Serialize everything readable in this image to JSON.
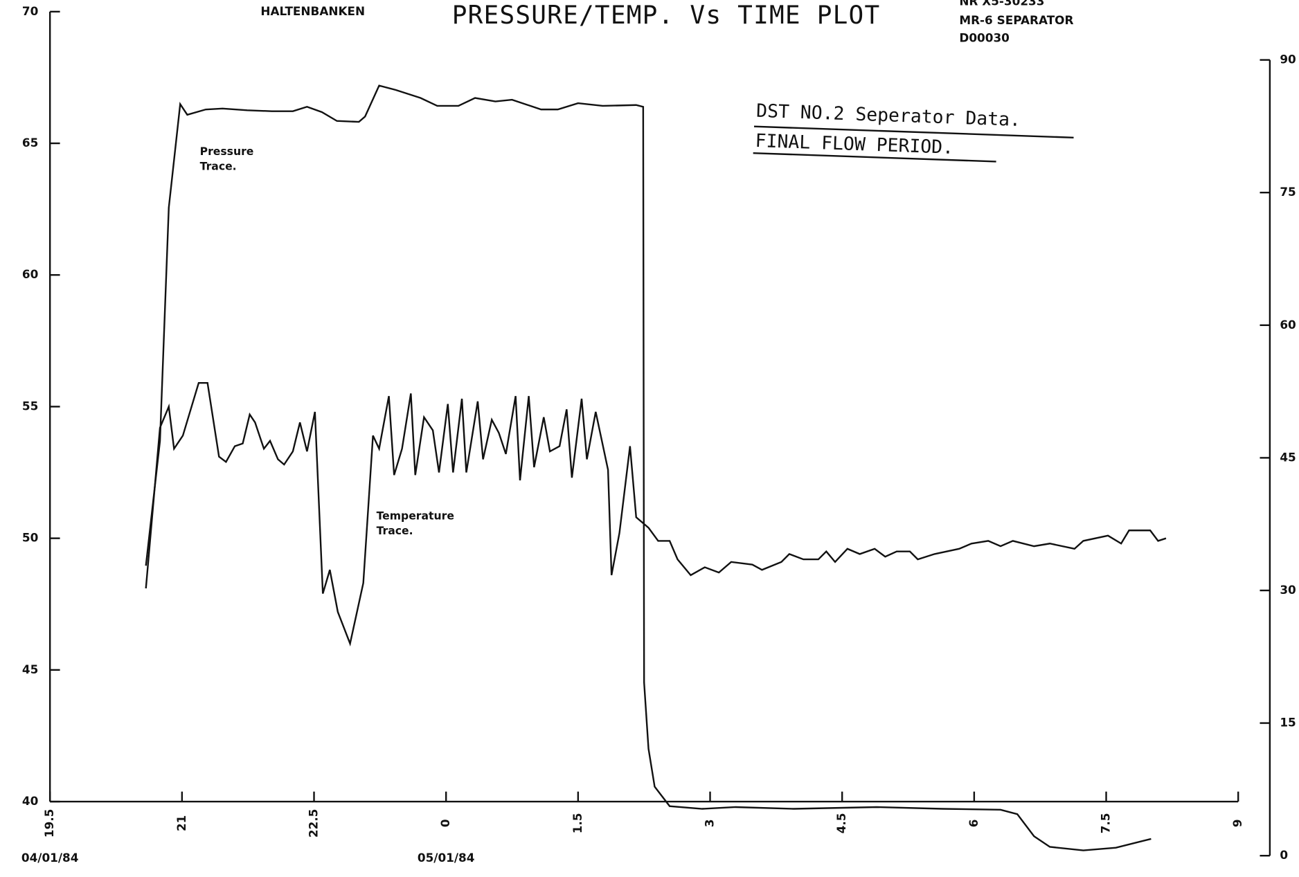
{
  "header": {
    "location": "HALTENBANKEN",
    "well_lines": [
      "NR X5-30233",
      "MR-6 SEPARATOR",
      "D00030"
    ]
  },
  "chart_data": {
    "type": "line",
    "title": "PRESSURE/TEMP. Vs TIME PLOT",
    "annotations": [
      "DST NO.2  Seperator Data.",
      "FINAL FLOW PERIOD."
    ],
    "color": "#111111",
    "grid": false,
    "xlim": [
      19.5,
      33
    ],
    "xticks": [
      19.5,
      21,
      22.5,
      {
        "value": 24,
        "label": "0"
      },
      {
        "value": 25.5,
        "label": "1.5"
      },
      {
        "value": 27,
        "label": "3"
      },
      {
        "value": 28.5,
        "label": "4.5"
      },
      {
        "value": 30,
        "label": "6"
      },
      {
        "value": 31.5,
        "label": "7.5"
      },
      {
        "value": 33,
        "label": "9"
      }
    ],
    "date_labels": [
      {
        "x": 19.5,
        "label": "04/01/84"
      },
      {
        "x": 24,
        "label": "05/01/84"
      }
    ],
    "ylim": [
      40,
      70
    ],
    "yticks": [
      40,
      45,
      50,
      55,
      60,
      65,
      70
    ],
    "y2lim": [
      0,
      90
    ],
    "y2ticks": [
      0,
      15,
      30,
      45,
      60,
      75,
      90
    ],
    "series": [
      {
        "name": "Pressure Trace.",
        "axis": "y2",
        "x": [
          20.59,
          20.75,
          20.85,
          20.98,
          21.06,
          21.27,
          21.46,
          21.74,
          22.02,
          22.26,
          22.42,
          22.59,
          22.76,
          23.01,
          23.08,
          23.24,
          23.43,
          23.71,
          23.9,
          24.14,
          24.33,
          24.56,
          24.75,
          25.08,
          25.27,
          25.5,
          25.78,
          26.16,
          26.24,
          26.25,
          26.3,
          26.37,
          26.54,
          26.91,
          27.29,
          27.95,
          28.89,
          29.64,
          30.3,
          30.49,
          30.68,
          30.86,
          31.24,
          31.61,
          32.01
        ],
        "values": [
          32.8,
          46.9,
          73.3,
          85.0,
          83.8,
          84.4,
          84.5,
          84.3,
          84.2,
          84.2,
          84.7,
          84.1,
          83.1,
          83.0,
          83.6,
          87.1,
          86.6,
          85.7,
          84.8,
          84.8,
          85.7,
          85.3,
          85.5,
          84.4,
          84.4,
          85.1,
          84.8,
          84.9,
          84.7,
          19.6,
          12.1,
          7.8,
          5.6,
          5.3,
          5.5,
          5.3,
          5.5,
          5.3,
          5.2,
          4.7,
          2.2,
          1.0,
          0.6,
          0.9,
          1.9
        ]
      },
      {
        "name": "Temperature Trace.",
        "x": [
          20.59,
          20.75,
          20.85,
          20.91,
          21.01,
          21.19,
          21.29,
          21.42,
          21.5,
          21.6,
          21.69,
          21.77,
          21.83,
          21.93,
          22.0,
          22.09,
          22.16,
          22.26,
          22.34,
          22.42,
          22.51,
          22.6,
          22.68,
          22.77,
          22.91,
          23.06,
          23.17,
          23.24,
          23.35,
          23.41,
          23.5,
          23.6,
          23.65,
          23.75,
          23.85,
          23.92,
          24.02,
          24.08,
          24.18,
          24.23,
          24.36,
          24.42,
          24.52,
          24.6,
          24.68,
          24.79,
          24.84,
          24.94,
          25.0,
          25.11,
          25.18,
          25.29,
          25.37,
          25.43,
          25.54,
          25.6,
          25.7,
          25.84,
          25.88,
          25.97,
          26.09,
          26.16,
          26.3,
          26.41,
          26.54,
          26.63,
          26.78,
          26.94,
          27.1,
          27.24,
          27.48,
          27.59,
          27.81,
          27.9,
          28.06,
          28.23,
          28.32,
          28.42,
          28.56,
          28.7,
          28.87,
          28.99,
          29.12,
          29.27,
          29.36,
          29.55,
          29.83,
          29.97,
          30.16,
          30.3,
          30.44,
          30.68,
          30.86,
          31.14,
          31.24,
          31.52,
          31.67,
          31.76,
          32.0,
          32.09,
          32.18
        ],
        "values": [
          48.1,
          54.2,
          55.0,
          53.4,
          53.9,
          55.9,
          55.9,
          53.1,
          52.9,
          53.5,
          53.6,
          54.7,
          54.4,
          53.4,
          53.7,
          53.0,
          52.8,
          53.3,
          54.4,
          53.3,
          54.8,
          47.9,
          48.8,
          47.2,
          46.0,
          48.3,
          53.9,
          53.4,
          55.4,
          52.4,
          53.4,
          55.5,
          52.4,
          54.6,
          54.1,
          52.5,
          55.1,
          52.5,
          55.3,
          52.5,
          55.2,
          53.0,
          54.5,
          54.0,
          53.2,
          55.4,
          52.2,
          55.4,
          52.7,
          54.6,
          53.3,
          53.5,
          54.9,
          52.3,
          55.3,
          53.0,
          54.8,
          52.6,
          48.6,
          50.2,
          53.5,
          50.8,
          50.4,
          49.9,
          49.9,
          49.2,
          48.6,
          48.9,
          48.7,
          49.1,
          49.0,
          48.8,
          49.1,
          49.4,
          49.2,
          49.2,
          49.5,
          49.1,
          49.6,
          49.4,
          49.6,
          49.3,
          49.5,
          49.5,
          49.2,
          49.4,
          49.6,
          49.8,
          49.9,
          49.7,
          49.9,
          49.7,
          49.8,
          49.6,
          49.9,
          50.1,
          49.8,
          50.3,
          50.3,
          49.9,
          50.0
        ]
      }
    ]
  }
}
